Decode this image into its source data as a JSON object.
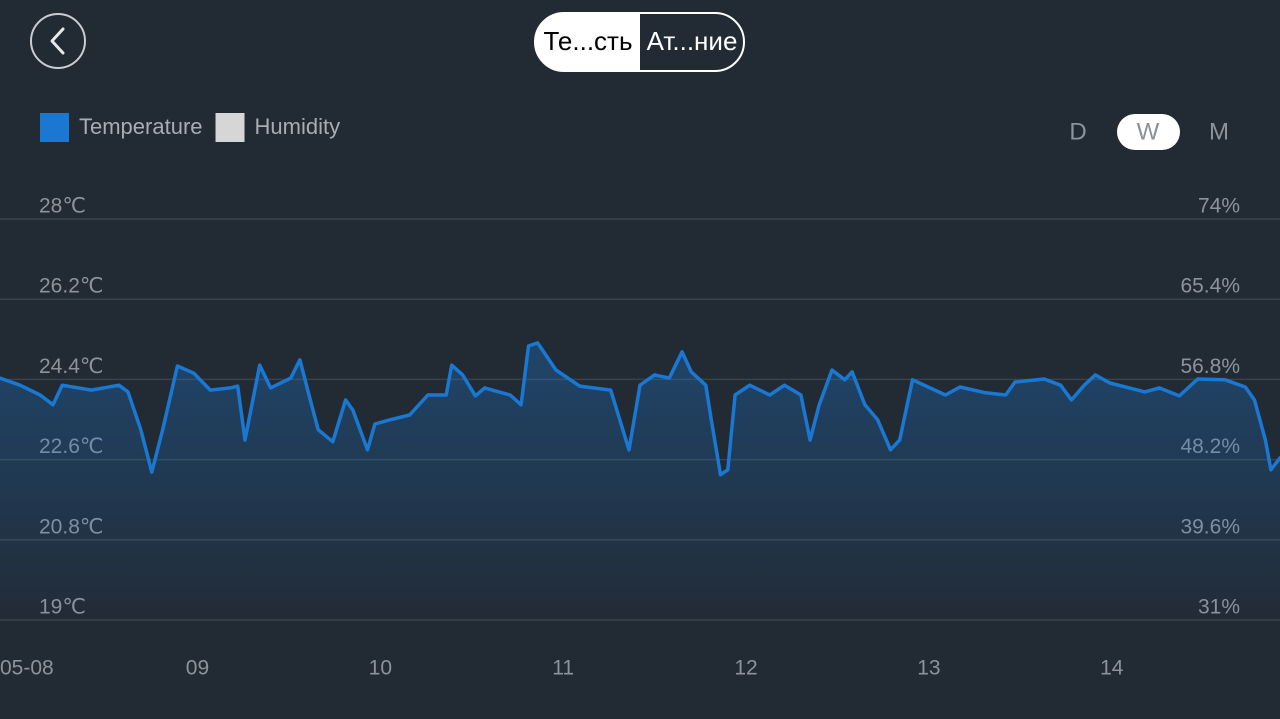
{
  "tabs": [
    "Те...сть",
    "Ат...ние"
  ],
  "periods": [
    "D",
    "W",
    "M"
  ],
  "selected_period": "W",
  "chart_data": {
    "type": "line",
    "area": true,
    "grid": true,
    "legend": [
      {
        "name": "Temperature",
        "color": "#1a78d2"
      },
      {
        "name": "Humidity",
        "color": "#d6d6d6"
      }
    ],
    "xlim": [
      7.92,
      14.92
    ],
    "xticks": [
      {
        "value": 8,
        "label": "05-08"
      },
      {
        "value": 9,
        "label": "09"
      },
      10,
      11,
      12,
      13,
      14
    ],
    "ylim": [
      19,
      28
    ],
    "yticks": [
      {
        "value": 19,
        "label": "19℃"
      },
      {
        "value": 20.8,
        "label": "20.8℃"
      },
      {
        "value": 22.6,
        "label": "22.6℃"
      },
      {
        "value": 24.4,
        "label": "24.4℃"
      },
      {
        "value": 26.2,
        "label": "26.2℃"
      },
      {
        "value": 28,
        "label": "28℃"
      }
    ],
    "y2lim": [
      31,
      74
    ],
    "y2ticks": [
      {
        "value": 31,
        "label": "31%"
      },
      {
        "value": 39.6,
        "label": "39.6%"
      },
      {
        "value": 48.2,
        "label": "48.2%"
      },
      {
        "value": 56.8,
        "label": "56.8%"
      },
      {
        "value": 65.4,
        "label": "65.4%"
      },
      {
        "value": 74,
        "label": "74%"
      }
    ],
    "x": [
      7.92,
      8.03,
      8.14,
      8.21,
      8.26,
      8.42,
      8.57,
      8.62,
      8.69,
      8.75,
      8.81,
      8.89,
      8.98,
      9.07,
      9.18,
      9.22,
      9.26,
      9.34,
      9.4,
      9.51,
      9.56,
      9.61,
      9.66,
      9.74,
      9.81,
      9.85,
      9.93,
      9.97,
      10.05,
      10.16,
      10.26,
      10.36,
      10.39,
      10.45,
      10.52,
      10.57,
      10.71,
      10.77,
      10.81,
      10.86,
      10.96,
      11.09,
      11.26,
      11.36,
      11.42,
      11.5,
      11.58,
      11.65,
      11.7,
      11.78,
      11.81,
      11.86,
      11.9,
      11.94,
      12.02,
      12.13,
      12.21,
      12.3,
      12.35,
      12.4,
      12.47,
      12.54,
      12.58,
      12.65,
      12.72,
      12.79,
      12.84,
      12.91,
      13.09,
      13.17,
      13.31,
      13.42,
      13.47,
      13.63,
      13.72,
      13.78,
      13.85,
      13.91,
      13.99,
      14.18,
      14.26,
      14.37,
      14.47,
      14.62,
      14.73,
      14.78,
      14.84,
      14.87,
      14.92
    ],
    "series": [
      {
        "name": "Temperature",
        "color": "#1a78d2",
        "values": [
          24.43,
          24.27,
          24.05,
          23.83,
          24.27,
          24.16,
          24.27,
          24.12,
          23.27,
          22.32,
          23.27,
          24.7,
          24.54,
          24.16,
          24.21,
          24.25,
          23.04,
          24.72,
          24.21,
          24.43,
          24.84,
          24.05,
          23.27,
          23.0,
          23.94,
          23.71,
          22.82,
          23.4,
          23.49,
          23.6,
          24.05,
          24.05,
          24.72,
          24.5,
          24.03,
          24.21,
          24.05,
          23.83,
          25.15,
          25.22,
          24.61,
          24.25,
          24.16,
          22.82,
          24.27,
          24.5,
          24.43,
          25.02,
          24.57,
          24.27,
          23.49,
          22.26,
          22.37,
          24.05,
          24.27,
          24.05,
          24.27,
          24.05,
          23.04,
          23.83,
          24.61,
          24.39,
          24.57,
          23.83,
          23.49,
          22.82,
          23.04,
          24.39,
          24.05,
          24.23,
          24.1,
          24.05,
          24.34,
          24.41,
          24.27,
          23.94,
          24.27,
          24.5,
          24.32,
          24.12,
          24.21,
          24.03,
          24.41,
          24.39,
          24.23,
          23.94,
          23.04,
          22.37,
          22.64
        ]
      }
    ]
  }
}
